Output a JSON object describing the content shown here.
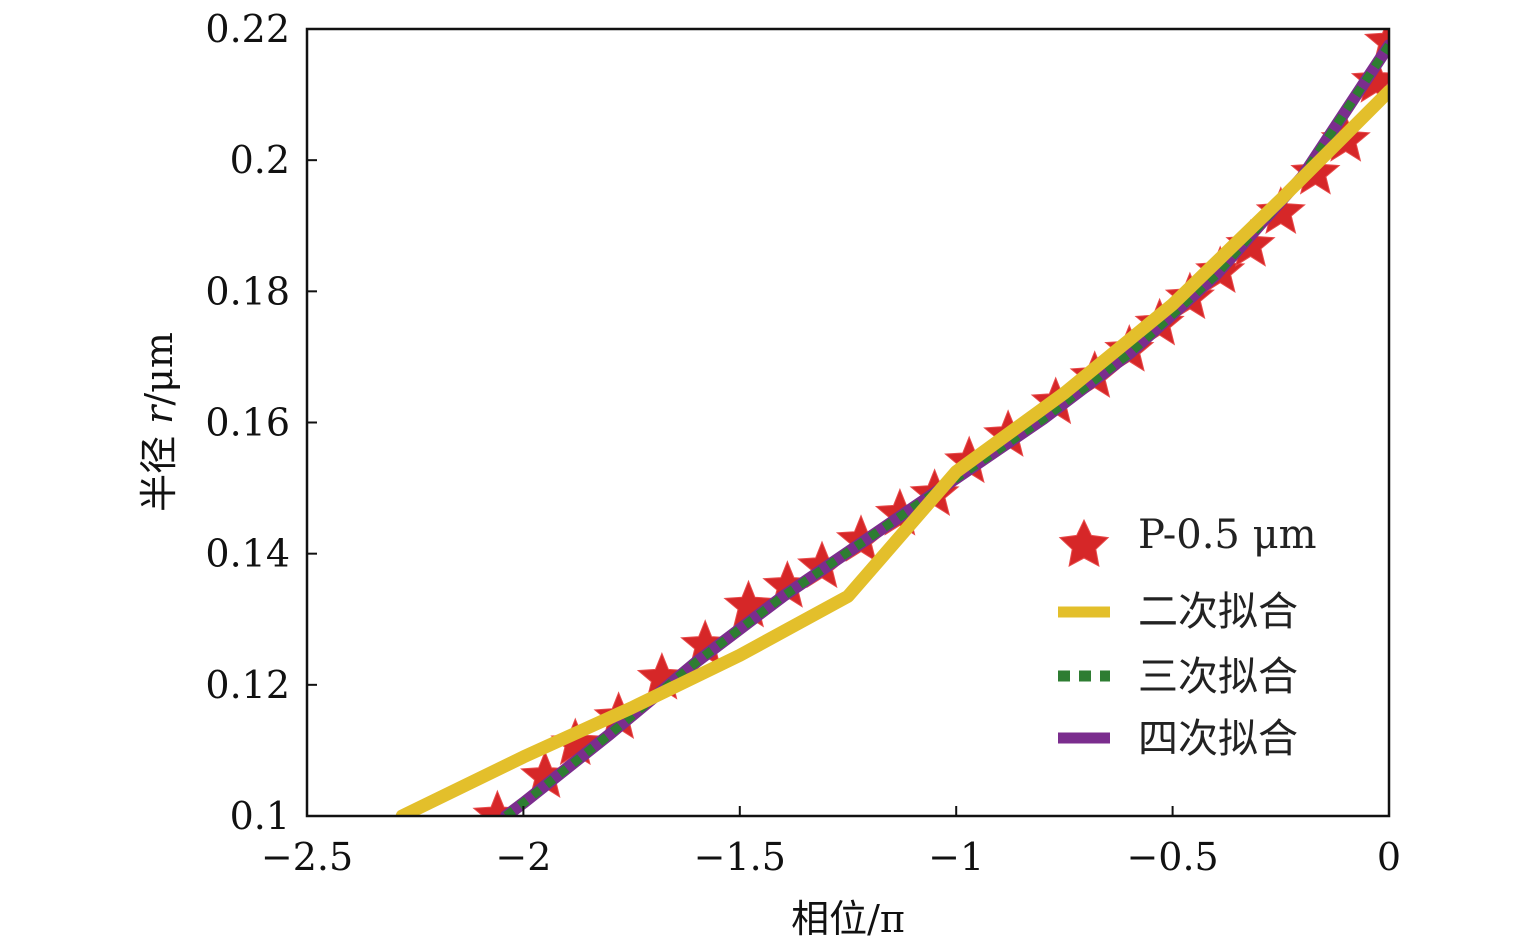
{
  "chart_data": {
    "type": "line",
    "title": "",
    "xlabel": "相位/π",
    "ylabel_prefix": "半径 ",
    "ylabel_var": "r",
    "ylabel_suffix": "/μm",
    "xlim": [
      -2.5,
      0
    ],
    "ylim": [
      0.1,
      0.22
    ],
    "xticks": [
      -2.5,
      -2,
      -1.5,
      -1,
      -0.5,
      0
    ],
    "xtick_labels": [
      "−2.5",
      "−2",
      "−1.5",
      "−1",
      "−0.5",
      "0"
    ],
    "yticks": [
      0.1,
      0.12,
      0.14,
      0.16,
      0.18,
      0.2,
      0.22
    ],
    "ytick_labels": [
      "0.1",
      "0.12",
      "0.14",
      "0.16",
      "0.18",
      "0.2",
      "0.22"
    ],
    "grid": false,
    "legend_position": "bottom-right",
    "series": [
      {
        "name": "P-0.5 μm",
        "style": "star-markers",
        "color": "#d62728",
        "x": [
          -2.06,
          -1.95,
          -1.88,
          -1.78,
          -1.68,
          -1.58,
          -1.48,
          -1.39,
          -1.31,
          -1.22,
          -1.13,
          -1.05,
          -0.97,
          -0.88,
          -0.77,
          -0.68,
          -0.6,
          -0.53,
          -0.46,
          -0.39,
          -0.32,
          -0.25,
          -0.17,
          -0.1,
          -0.03,
          0.0
        ],
        "y": [
          0.1,
          0.106,
          0.111,
          0.115,
          0.121,
          0.126,
          0.132,
          0.135,
          0.138,
          0.142,
          0.146,
          0.149,
          0.154,
          0.158,
          0.163,
          0.167,
          0.171,
          0.175,
          0.179,
          0.183,
          0.187,
          0.192,
          0.198,
          0.203,
          0.212,
          0.218
        ]
      },
      {
        "name": "二次拟合",
        "style": "thick-line",
        "color": "#e3bf2b",
        "x": [
          -2.28,
          -2.0,
          -1.75,
          -1.5,
          -1.25,
          -1.0,
          -0.75,
          -0.5,
          -0.25,
          0.0
        ],
        "y": [
          0.1,
          0.109,
          0.1165,
          0.1245,
          0.1335,
          0.1525,
          0.1645,
          0.178,
          0.194,
          0.2105
        ]
      },
      {
        "name": "三次拟合",
        "style": "dotted",
        "color": "#2e7d32",
        "x": [
          -2.04,
          -2.0,
          -1.8,
          -1.6,
          -1.4,
          -1.2,
          -1.0,
          -0.8,
          -0.6,
          -0.4,
          -0.2,
          0.0
        ],
        "y": [
          0.1,
          0.102,
          0.1125,
          0.1235,
          0.1335,
          0.1425,
          0.1515,
          0.1605,
          0.1705,
          0.1825,
          0.1975,
          0.2175
        ]
      },
      {
        "name": "四次拟合",
        "style": "thick-line",
        "color": "#7b2d8e",
        "x": [
          -2.04,
          -2.0,
          -1.8,
          -1.6,
          -1.4,
          -1.2,
          -1.0,
          -0.8,
          -0.6,
          -0.4,
          -0.2,
          0.0
        ],
        "y": [
          0.1,
          0.102,
          0.1125,
          0.1235,
          0.1335,
          0.1425,
          0.1515,
          0.1605,
          0.1705,
          0.1825,
          0.1975,
          0.2175
        ]
      }
    ]
  }
}
